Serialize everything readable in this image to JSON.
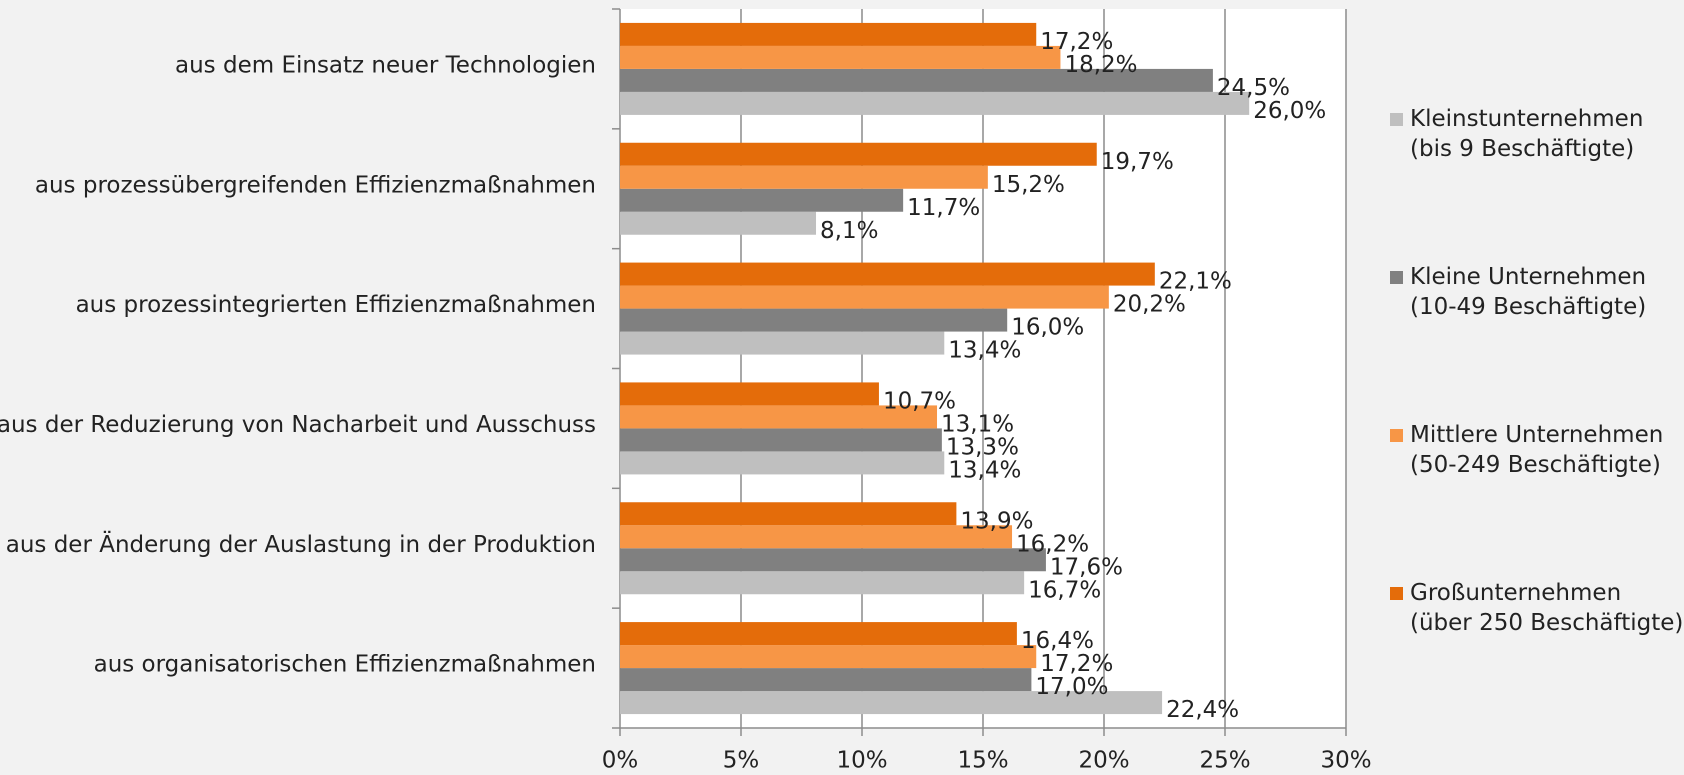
{
  "chart_data": {
    "type": "hbar",
    "categories": [
      "aus dem Einsatz neuer Technologien",
      "aus prozessübergreifenden Effizienzmaßnahmen",
      "aus prozessintegrierten Effizienzmaßnahmen",
      "aus der Reduzierung von Nacharbeit und Ausschuss",
      "aus der Änderung der Auslastung in der Produktion",
      "aus organisatorischen Effizienzmaßnahmen"
    ],
    "series": [
      {
        "name": "Kleinstunternehmen\n(bis 9 Beschäftigte)",
        "color": "#bfbfbf",
        "values": [
          26.0,
          8.1,
          13.4,
          13.4,
          16.7,
          22.4
        ],
        "value_labels": [
          "26,0%",
          "8,1%",
          "13,4%",
          "13,4%",
          "16,7%",
          "22,4%"
        ]
      },
      {
        "name": "Kleine Unternehmen\n(10-49 Beschäftigte)",
        "color": "#808080",
        "values": [
          24.5,
          11.7,
          16.0,
          13.3,
          17.6,
          17.0
        ],
        "value_labels": [
          "24,5%",
          "11,7%",
          "16,0%",
          "13,3%",
          "17,6%",
          "17,0%"
        ]
      },
      {
        "name": "Mittlere Unternehmen\n(50-249 Beschäftigte)",
        "color": "#f79646",
        "values": [
          18.2,
          15.2,
          20.2,
          13.1,
          16.2,
          17.2
        ],
        "value_labels": [
          "18,2%",
          "15,2%",
          "20,2%",
          "13,1%",
          "16,2%",
          "17,2%"
        ]
      },
      {
        "name": "Großunternehmen\n(über 250 Beschäftigte)",
        "color": "#e46c0a",
        "values": [
          17.2,
          19.7,
          22.1,
          10.7,
          13.9,
          16.4
        ],
        "value_labels": [
          "17,2%",
          "19,7%",
          "22,1%",
          "10,7%",
          "13,9%",
          "16,4%"
        ]
      }
    ],
    "xlim": [
      0,
      30
    ],
    "xticks": [
      {
        "value": 0,
        "label": "0%"
      },
      {
        "value": 5,
        "label": "5%"
      },
      {
        "value": 10,
        "label": "10%"
      },
      {
        "value": 15,
        "label": "15%"
      },
      {
        "value": 20,
        "label": "20%"
      },
      {
        "value": 25,
        "label": "25%"
      },
      {
        "value": 30,
        "label": "30%"
      }
    ],
    "grid": true,
    "legend": "right"
  }
}
